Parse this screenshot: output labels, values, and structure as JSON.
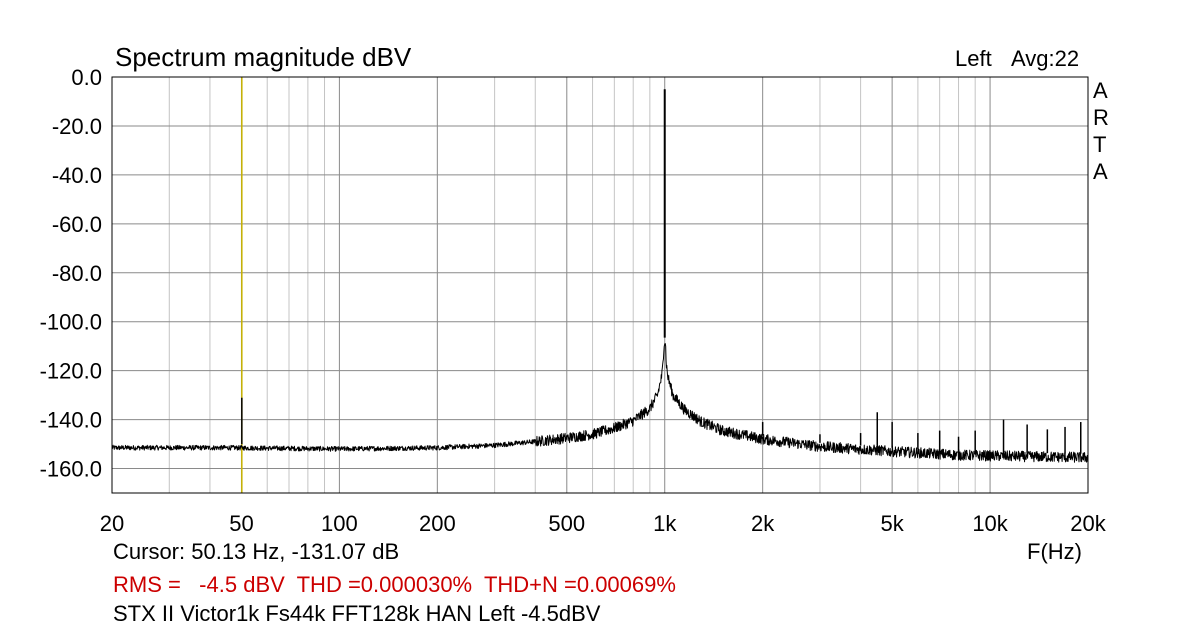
{
  "chart_data": {
    "type": "line",
    "title": "Spectrum magnitude dBV",
    "channel_label": "Left",
    "averaging": "Avg:22",
    "brand_letters": [
      "A",
      "R",
      "T",
      "A"
    ],
    "xlabel": "F(Hz)",
    "ylabel": "",
    "x_scale": "log",
    "xlim": [
      20,
      20000
    ],
    "ylim": [
      -170,
      0
    ],
    "grid": true,
    "x_ticks": [
      {
        "value": 20,
        "label": "20"
      },
      {
        "value": 50,
        "label": "50"
      },
      {
        "value": 100,
        "label": "100"
      },
      {
        "value": 200,
        "label": "200"
      },
      {
        "value": 500,
        "label": "500"
      },
      {
        "value": 1000,
        "label": "1k"
      },
      {
        "value": 2000,
        "label": "2k"
      },
      {
        "value": 5000,
        "label": "5k"
      },
      {
        "value": 10000,
        "label": "10k"
      },
      {
        "value": 20000,
        "label": "20k"
      }
    ],
    "y_ticks": [
      {
        "value": 0,
        "label": "0.0"
      },
      {
        "value": -20,
        "label": "-20.0"
      },
      {
        "value": -40,
        "label": "-40.0"
      },
      {
        "value": -60,
        "label": "-60.0"
      },
      {
        "value": -80,
        "label": "-80.0"
      },
      {
        "value": -100,
        "label": "-100.0"
      },
      {
        "value": -120,
        "label": "-120.0"
      },
      {
        "value": -140,
        "label": "-140.0"
      },
      {
        "value": -160,
        "label": "-160.0"
      }
    ],
    "cursor": {
      "x": 50.13,
      "color": "#c8b400"
    },
    "series": [
      {
        "color": "#000000",
        "noise_floor": [
          {
            "x": 20,
            "y": -151.5
          },
          {
            "x": 30,
            "y": -151.5
          },
          {
            "x": 45,
            "y": -151.5
          },
          {
            "x": 100,
            "y": -152
          },
          {
            "x": 200,
            "y": -151.5
          },
          {
            "x": 300,
            "y": -150.5
          },
          {
            "x": 400,
            "y": -149
          },
          {
            "x": 500,
            "y": -147.5
          },
          {
            "x": 600,
            "y": -146
          },
          {
            "x": 700,
            "y": -143.5
          },
          {
            "x": 800,
            "y": -140.5
          },
          {
            "x": 900,
            "y": -135.5
          },
          {
            "x": 950,
            "y": -130
          },
          {
            "x": 980,
            "y": -122
          },
          {
            "x": 990,
            "y": -116
          },
          {
            "x": 995,
            "y": -108
          },
          {
            "x": 1005,
            "y": -108
          },
          {
            "x": 1010,
            "y": -116
          },
          {
            "x": 1020,
            "y": -122
          },
          {
            "x": 1060,
            "y": -130
          },
          {
            "x": 1150,
            "y": -136
          },
          {
            "x": 1300,
            "y": -141
          },
          {
            "x": 1500,
            "y": -144.5
          },
          {
            "x": 2000,
            "y": -148
          },
          {
            "x": 3000,
            "y": -151
          },
          {
            "x": 5000,
            "y": -153
          },
          {
            "x": 8000,
            "y": -154.5
          },
          {
            "x": 12000,
            "y": -155
          },
          {
            "x": 20000,
            "y": -155.5
          }
        ],
        "peaks": [
          {
            "x": 50.13,
            "y": -131.07
          },
          {
            "x": 1000,
            "y": -5
          },
          {
            "x": 2000,
            "y": -141
          },
          {
            "x": 3000,
            "y": -146
          },
          {
            "x": 4000,
            "y": -145.5
          },
          {
            "x": 4500,
            "y": -137
          },
          {
            "x": 5000,
            "y": -141
          },
          {
            "x": 6000,
            "y": -145.5
          },
          {
            "x": 7000,
            "y": -144.5
          },
          {
            "x": 8000,
            "y": -147
          },
          {
            "x": 9000,
            "y": -144.5
          },
          {
            "x": 11000,
            "y": -140
          },
          {
            "x": 13000,
            "y": -142
          },
          {
            "x": 15000,
            "y": -144
          },
          {
            "x": 17000,
            "y": -143
          },
          {
            "x": 19000,
            "y": -141
          }
        ]
      }
    ]
  },
  "footer": {
    "cursor_text": "Cursor: 50.13 Hz, -131.07 dB",
    "stats_text": "RMS =   -4.5 dBV  THD =0.000030%  THD+N =0.00069%",
    "stats_color": "#cc0000",
    "description": "STX II Victor1k Fs44k FFT128k HAN Left -4.5dBV"
  }
}
